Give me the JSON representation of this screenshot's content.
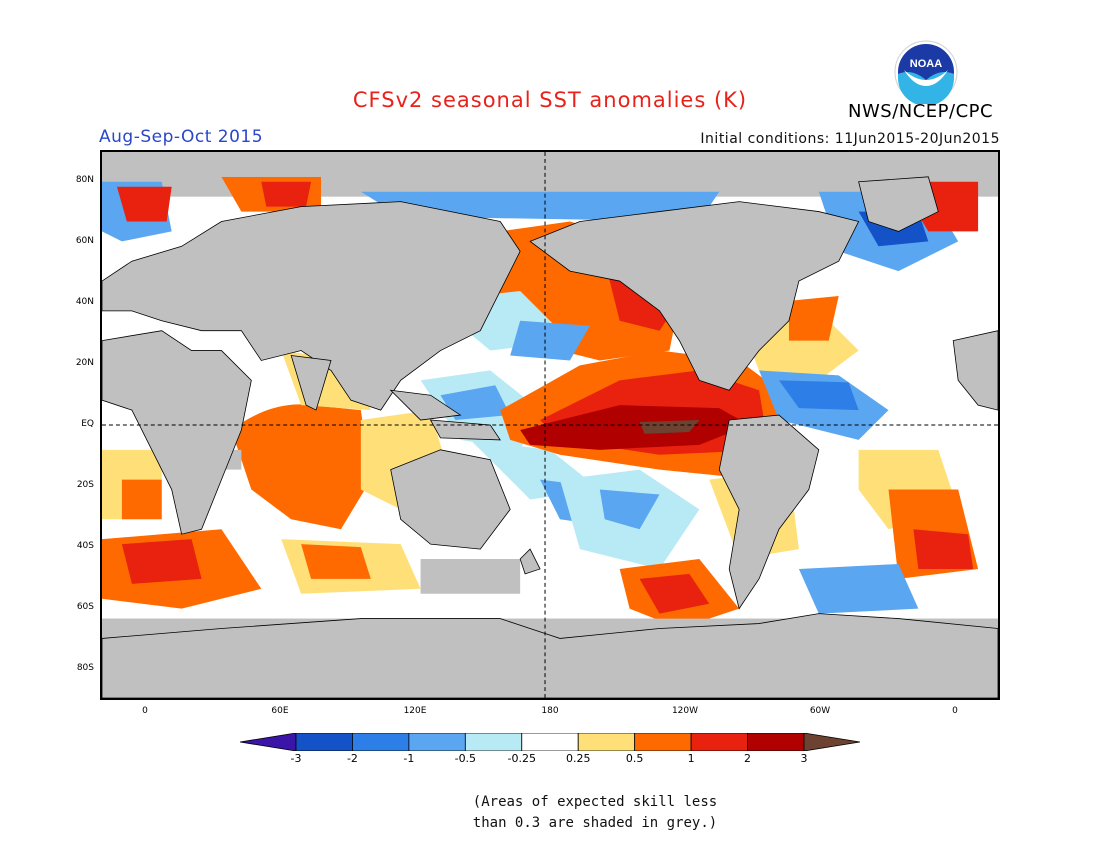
{
  "header": {
    "title": "CFSv2 seasonal SST anomalies (K)",
    "season": "Aug-Sep-Oct 2015",
    "initial_conditions": "Initial conditions: 11Jun2015-20Jun2015",
    "agency": "NWS/NCEP/CPC",
    "logo_text": "NOAA"
  },
  "map": {
    "projection": "cylindrical equidistant",
    "lon_range": [
      -20,
      380
    ],
    "lat_range": [
      -90,
      90
    ],
    "lat_labels": [
      {
        "lat": 80,
        "text": "80N"
      },
      {
        "lat": 60,
        "text": "60N"
      },
      {
        "lat": 40,
        "text": "40N"
      },
      {
        "lat": 20,
        "text": "20N"
      },
      {
        "lat": 0,
        "text": "EQ"
      },
      {
        "lat": -20,
        "text": "20S"
      },
      {
        "lat": -40,
        "text": "40S"
      },
      {
        "lat": -60,
        "text": "60S"
      },
      {
        "lat": -80,
        "text": "80S"
      }
    ],
    "lon_labels": [
      {
        "lon": 0,
        "text": "0"
      },
      {
        "lon": 60,
        "text": "60E"
      },
      {
        "lon": 120,
        "text": "120E"
      },
      {
        "lon": 180,
        "text": "180"
      },
      {
        "lon": 240,
        "text": "120W"
      },
      {
        "lon": 300,
        "text": "60W"
      },
      {
        "lon": 360,
        "text": "0"
      }
    ],
    "reference_lines": {
      "equator": true,
      "dateline": true
    },
    "masked_color": "#c0c0c0"
  },
  "colorbar": {
    "labels": [
      "-3",
      "-2",
      "-1",
      "-0.5",
      "-0.25",
      "0.25",
      "0.5",
      "1",
      "2",
      "3"
    ],
    "colors": [
      "#3b14a8",
      "#1452c8",
      "#2d7ee6",
      "#5aa6f0",
      "#b8eaf6",
      "#ffffff",
      "#ffe078",
      "#ff6a00",
      "#e8220e",
      "#b00000",
      "#6e4230"
    ]
  },
  "note": {
    "line1": "(Areas of expected skill less",
    "line2": "than 0.3 are shaded in grey.)"
  }
}
